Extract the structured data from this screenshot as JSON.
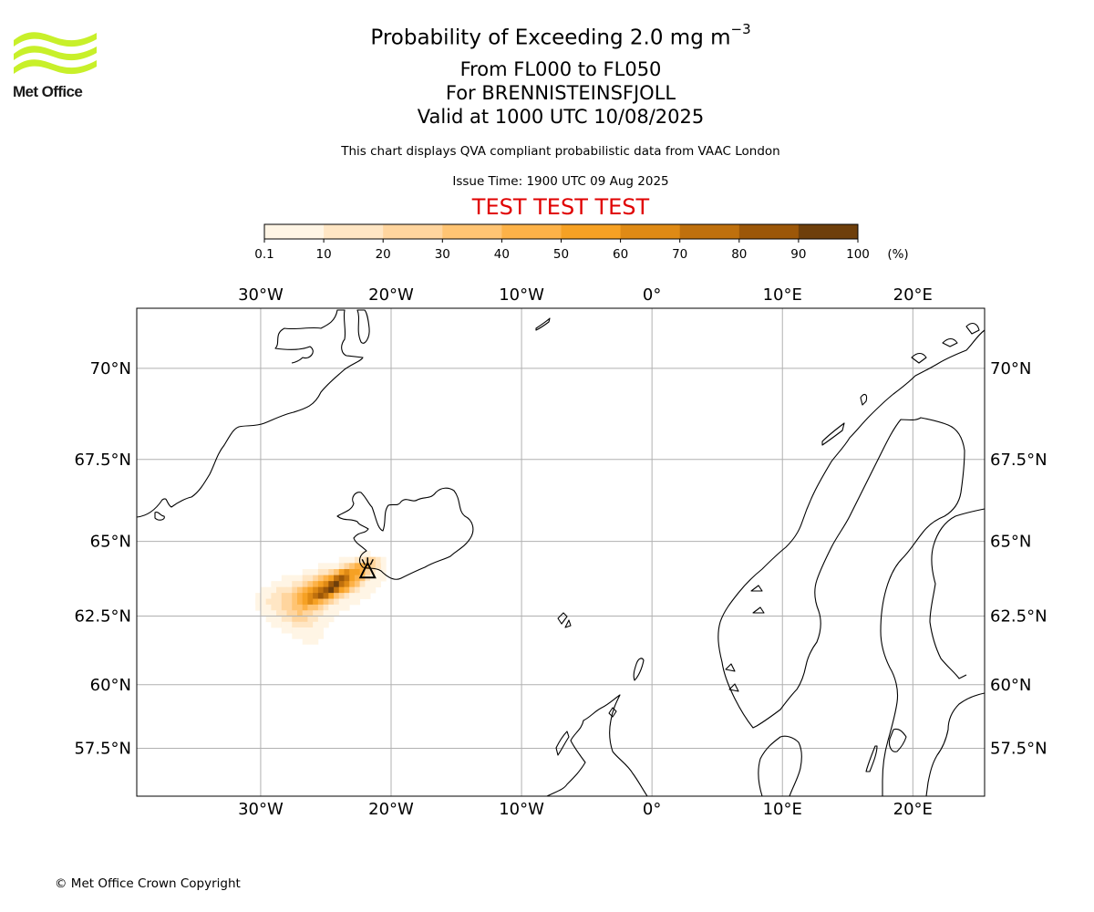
{
  "header": {
    "logo_text": "Met Office",
    "title": "Probability of Exceeding 2.0 mg m",
    "title_superscript": "−3",
    "level_range": "From FL000 to FL050",
    "volcano": "For BRENNISTEINSFJOLL",
    "valid_time": "Valid at 1000 UTC 10/08/2025",
    "description": "This chart displays QVA compliant probabilistic data from VAAC London",
    "issue_time": "Issue Time: 1900 UTC 09 Aug 2025",
    "test_banner": "TEST TEST TEST"
  },
  "colorbar": {
    "unit": "(%)",
    "ticks": [
      "0.1",
      "10",
      "20",
      "30",
      "40",
      "50",
      "60",
      "70",
      "80",
      "90",
      "100"
    ],
    "colors": [
      "#fff5e5",
      "#ffe6c4",
      "#ffd59e",
      "#ffc473",
      "#fdb248",
      "#f6a124",
      "#df8a15",
      "#bf700d",
      "#9c5708",
      "#6e3f0b"
    ]
  },
  "map": {
    "lon_labels": [
      "30°W",
      "20°W",
      "10°W",
      "0°",
      "10°E",
      "20°E"
    ],
    "lat_labels": [
      "70°N",
      "67.5°N",
      "65°N",
      "62.5°N",
      "60°N",
      "57.5°N"
    ],
    "lons": [
      -30,
      -20,
      -10,
      0,
      10,
      20
    ],
    "lats": [
      70,
      67.5,
      65,
      62.5,
      60,
      57.5
    ],
    "extent": {
      "lon_min": -39.5,
      "lon_max": 25.5,
      "lat_min": 55.5,
      "lat_max": 71.5
    },
    "gridline_color": "#b0b0b0",
    "volcano_marker": {
      "lon": -21.8,
      "lat": 64.0
    }
  },
  "plume": {
    "cell_deg": 0.4,
    "rows": [
      {
        "lat": 64.5,
        "lon0": -22.4,
        "levels": [
          1,
          1
        ]
      },
      {
        "lat": 64.3,
        "lon0": -24.0,
        "levels": [
          1,
          1,
          1,
          2,
          2,
          3,
          3,
          2,
          1
        ]
      },
      {
        "lat": 64.1,
        "lon0": -25.6,
        "levels": [
          1,
          1,
          1,
          1,
          2,
          3,
          4,
          5,
          5,
          5,
          3,
          2
        ]
      },
      {
        "lat": 63.9,
        "lon0": -26.8,
        "levels": [
          1,
          1,
          1,
          2,
          2,
          3,
          4,
          6,
          7,
          6,
          6,
          5,
          3,
          2,
          1,
          1
        ]
      },
      {
        "lat": 63.7,
        "lon0": -28.4,
        "levels": [
          1,
          1,
          1,
          1,
          2,
          2,
          3,
          4,
          5,
          6,
          8,
          9,
          8,
          6,
          5,
          4,
          2,
          1,
          1
        ]
      },
      {
        "lat": 63.5,
        "lon0": -29.2,
        "levels": [
          1,
          1,
          1,
          1,
          2,
          2,
          3,
          4,
          5,
          6,
          7,
          9,
          10,
          8,
          7,
          5,
          4,
          2,
          1,
          1
        ]
      },
      {
        "lat": 63.3,
        "lon0": -30.0,
        "levels": [
          1,
          1,
          1,
          2,
          2,
          2,
          3,
          4,
          5,
          6,
          7,
          8,
          9,
          10,
          8,
          6,
          5,
          3,
          2,
          1,
          1
        ]
      },
      {
        "lat": 63.1,
        "lon0": -30.4,
        "levels": [
          1,
          1,
          1,
          2,
          2,
          3,
          3,
          4,
          5,
          6,
          7,
          8,
          9,
          8,
          6,
          4,
          3,
          2,
          1,
          1
        ]
      },
      {
        "lat": 62.9,
        "lon0": -30.4,
        "levels": [
          1,
          1,
          2,
          2,
          2,
          3,
          3,
          4,
          5,
          6,
          7,
          6,
          5,
          4,
          3,
          2,
          1,
          1
        ]
      },
      {
        "lat": 62.7,
        "lon0": -30.0,
        "levels": [
          1,
          1,
          2,
          2,
          3,
          3,
          4,
          4,
          5,
          4,
          4,
          3,
          2,
          1,
          1
        ]
      },
      {
        "lat": 62.5,
        "lon0": -29.6,
        "levels": [
          1,
          1,
          2,
          2,
          3,
          3,
          4,
          3,
          3,
          2,
          2,
          1,
          1
        ]
      },
      {
        "lat": 62.3,
        "lon0": -29.2,
        "levels": [
          1,
          1,
          2,
          2,
          3,
          3,
          3,
          2,
          2,
          1,
          1
        ]
      },
      {
        "lat": 62.1,
        "lon0": -28.4,
        "levels": [
          1,
          1,
          2,
          2,
          2,
          2,
          1,
          1
        ]
      },
      {
        "lat": 61.9,
        "lon0": -27.6,
        "levels": [
          1,
          1,
          1,
          1,
          1,
          1
        ]
      },
      {
        "lat": 61.7,
        "lon0": -26.8,
        "levels": [
          1,
          1,
          1
        ]
      }
    ]
  },
  "footer": {
    "copyright": "© Met Office Crown Copyright"
  }
}
